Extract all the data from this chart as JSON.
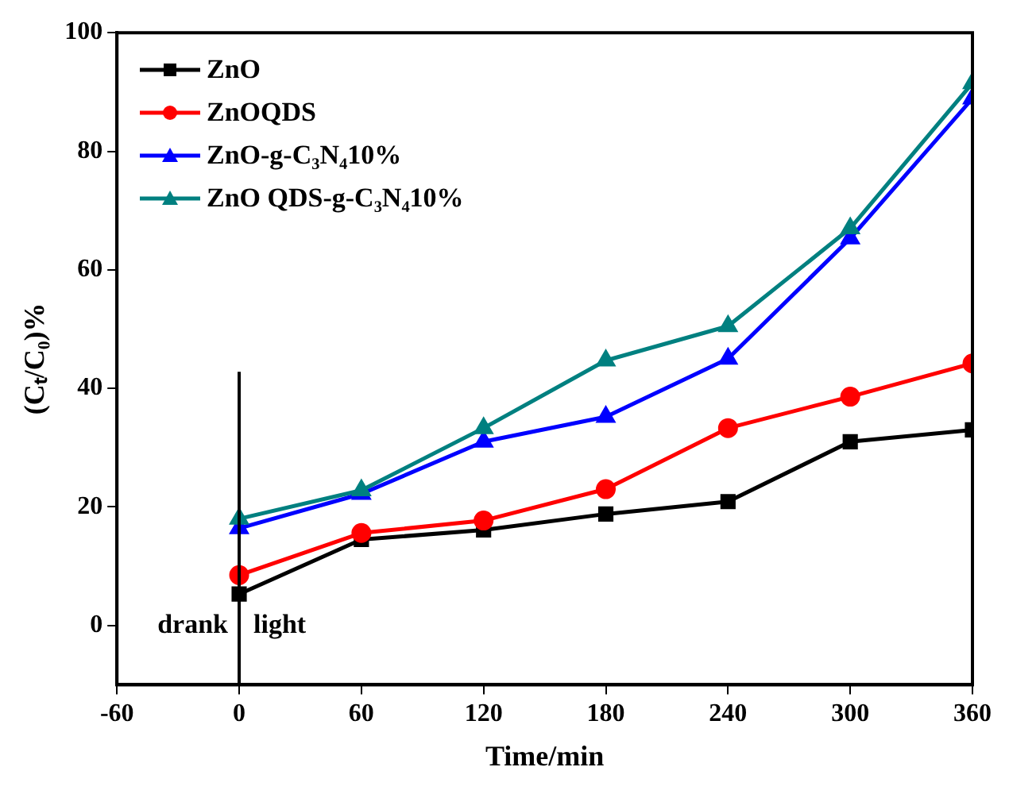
{
  "chart_data": {
    "type": "line",
    "xlabel": "Time/min",
    "ylabel": "(Cₜ/C₀)%",
    "x": [
      0,
      60,
      120,
      180,
      240,
      300,
      360
    ],
    "series": [
      {
        "name": "ZnO",
        "color": "#000000",
        "marker": "square",
        "values": [
          5.3,
          14.5,
          16.1,
          18.8,
          20.9,
          31,
          33
        ]
      },
      {
        "name": "ZnOQDS",
        "color": "#ff0000",
        "marker": "circle",
        "values": [
          8.5,
          15.6,
          17.7,
          23,
          33.3,
          38.6,
          44.2
        ]
      },
      {
        "name": "ZnO-g-C₃N₄10%",
        "color": "#0000ff",
        "marker": "triangle",
        "values": [
          16.4,
          22.2,
          31,
          35.2,
          45,
          65.3,
          88.9
        ]
      },
      {
        "name": "ZnO QDS-g-C₃N₄10%",
        "color": "#008080",
        "marker": "triangle",
        "values": [
          18,
          22.8,
          33.3,
          44.7,
          50.5,
          67,
          91.5
        ]
      }
    ],
    "xlim": [
      -60,
      360
    ],
    "xticks": [
      -60,
      0,
      60,
      120,
      180,
      240,
      300,
      360
    ],
    "ylim": [
      -10,
      100
    ],
    "yticks": [
      0,
      20,
      40,
      60,
      80,
      100
    ],
    "grid": false,
    "legend": "top left",
    "ref_lines": [
      {
        "axis": "x",
        "value": 0,
        "color": "#000000"
      }
    ],
    "annotations": [
      "drank",
      "light"
    ]
  }
}
